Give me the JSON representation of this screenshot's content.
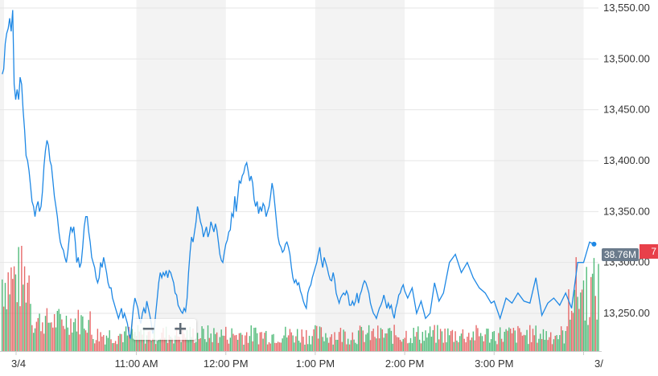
{
  "chart_data": {
    "type": "line",
    "title": "",
    "xlabel": "",
    "ylabel": "",
    "ylim": [
      13215,
      13560
    ],
    "y_ticks": [
      "13,550.00",
      "13,500.00",
      "13,450.00",
      "13,400.00",
      "13,350.00",
      "13,300.00",
      "13,250.00"
    ],
    "y_tick_values": [
      13550,
      13500,
      13450,
      13400,
      13350,
      13300,
      13250
    ],
    "x_tick_labels": [
      "3/4",
      "11:00 AM",
      "12:00 PM",
      "1:00 PM",
      "2:00 PM",
      "3:00 PM",
      "3/"
    ],
    "x_tick_minutes": [
      0,
      90,
      150,
      210,
      270,
      330,
      390
    ],
    "xlim_minutes": [
      -1.5,
      400
    ],
    "grid": true,
    "series": [
      {
        "kind": "price",
        "color": "#1e88e5",
        "points": [
          [
            0,
            13485
          ],
          [
            1,
            13490
          ],
          [
            2,
            13515
          ],
          [
            3,
            13525
          ],
          [
            4,
            13530
          ],
          [
            5,
            13540
          ],
          [
            6,
            13527
          ],
          [
            7,
            13548
          ],
          [
            8,
            13475
          ],
          [
            9,
            13460
          ],
          [
            10,
            13470
          ],
          [
            11,
            13460
          ],
          [
            12,
            13482
          ],
          [
            13,
            13475
          ],
          [
            14,
            13450
          ],
          [
            15,
            13430
          ],
          [
            16,
            13405
          ],
          [
            17,
            13400
          ],
          [
            18,
            13390
          ],
          [
            19,
            13375
          ],
          [
            20,
            13360
          ],
          [
            21,
            13355
          ],
          [
            22,
            13345
          ],
          [
            23,
            13355
          ],
          [
            24,
            13360
          ],
          [
            25,
            13350
          ],
          [
            26,
            13355
          ],
          [
            27,
            13370
          ],
          [
            28,
            13395
          ],
          [
            29,
            13410
          ],
          [
            30,
            13420
          ],
          [
            31,
            13415
          ],
          [
            32,
            13400
          ],
          [
            33,
            13395
          ],
          [
            34,
            13380
          ],
          [
            35,
            13365
          ],
          [
            36,
            13355
          ],
          [
            37,
            13345
          ],
          [
            38,
            13330
          ],
          [
            39,
            13320
          ],
          [
            40,
            13315
          ],
          [
            41,
            13312
          ],
          [
            42,
            13305
          ],
          [
            43,
            13300
          ],
          [
            44,
            13310
          ],
          [
            45,
            13325
          ],
          [
            46,
            13335
          ],
          [
            47,
            13330
          ],
          [
            48,
            13335
          ],
          [
            49,
            13320
          ],
          [
            50,
            13300
          ],
          [
            51,
            13305
          ],
          [
            52,
            13295
          ],
          [
            53,
            13300
          ],
          [
            54,
            13315
          ],
          [
            55,
            13335
          ],
          [
            56,
            13345
          ],
          [
            57,
            13345
          ],
          [
            58,
            13330
          ],
          [
            59,
            13320
          ],
          [
            60,
            13305
          ],
          [
            61,
            13300
          ],
          [
            62,
            13295
          ],
          [
            63,
            13285
          ],
          [
            64,
            13280
          ],
          [
            65,
            13285
          ],
          [
            66,
            13300
          ],
          [
            67,
            13295
          ],
          [
            68,
            13305
          ],
          [
            69,
            13298
          ],
          [
            70,
            13290
          ],
          [
            71,
            13280
          ],
          [
            72,
            13275
          ],
          [
            73,
            13275
          ],
          [
            74,
            13265
          ],
          [
            75,
            13260
          ],
          [
            76,
            13255
          ],
          [
            77,
            13250
          ],
          [
            78,
            13245
          ],
          [
            79,
            13250
          ],
          [
            80,
            13255
          ],
          [
            81,
            13245
          ],
          [
            82,
            13250
          ],
          [
            83,
            13245
          ],
          [
            84,
            13240
          ],
          [
            85,
            13230
          ],
          [
            86,
            13225
          ],
          [
            87,
            13240
          ],
          [
            88,
            13255
          ],
          [
            89,
            13265
          ],
          [
            90,
            13260
          ],
          [
            91,
            13255
          ],
          [
            92,
            13245
          ],
          [
            93,
            13240
          ],
          [
            94,
            13250
          ],
          [
            95,
            13255
          ],
          [
            96,
            13250
          ],
          [
            97,
            13262
          ],
          [
            98,
            13255
          ],
          [
            99,
            13248
          ],
          [
            100,
            13240
          ],
          [
            101,
            13230
          ],
          [
            102,
            13235
          ],
          [
            103,
            13250
          ],
          [
            104,
            13265
          ],
          [
            105,
            13280
          ],
          [
            106,
            13290
          ],
          [
            107,
            13285
          ],
          [
            108,
            13290
          ],
          [
            109,
            13287
          ],
          [
            110,
            13292
          ],
          [
            111,
            13285
          ],
          [
            112,
            13292
          ],
          [
            113,
            13290
          ],
          [
            114,
            13285
          ],
          [
            115,
            13280
          ],
          [
            116,
            13270
          ],
          [
            117,
            13268
          ],
          [
            118,
            13258
          ],
          [
            119,
            13255
          ],
          [
            120,
            13252
          ],
          [
            121,
            13250
          ],
          [
            122,
            13255
          ],
          [
            123,
            13252
          ],
          [
            124,
            13265
          ],
          [
            125,
            13290
          ],
          [
            126,
            13310
          ],
          [
            127,
            13325
          ],
          [
            128,
            13320
          ],
          [
            129,
            13330
          ],
          [
            130,
            13340
          ],
          [
            131,
            13355
          ],
          [
            132,
            13348
          ],
          [
            133,
            13340
          ],
          [
            134,
            13335
          ],
          [
            135,
            13325
          ],
          [
            136,
            13330
          ],
          [
            137,
            13335
          ],
          [
            138,
            13325
          ],
          [
            139,
            13330
          ],
          [
            140,
            13340
          ],
          [
            141,
            13335
          ],
          [
            142,
            13330
          ],
          [
            143,
            13338
          ],
          [
            144,
            13332
          ],
          [
            145,
            13320
          ],
          [
            146,
            13308
          ],
          [
            147,
            13302
          ],
          [
            148,
            13300
          ],
          [
            149,
            13310
          ],
          [
            150,
            13318
          ],
          [
            151,
            13322
          ],
          [
            152,
            13330
          ],
          [
            153,
            13332
          ],
          [
            154,
            13348
          ],
          [
            155,
            13345
          ],
          [
            156,
            13365
          ],
          [
            157,
            13350
          ],
          [
            158,
            13365
          ],
          [
            159,
            13380
          ],
          [
            160,
            13378
          ],
          [
            161,
            13385
          ],
          [
            162,
            13388
          ],
          [
            163,
            13395
          ],
          [
            164,
            13398
          ],
          [
            165,
            13390
          ],
          [
            166,
            13380
          ],
          [
            167,
            13385
          ],
          [
            168,
            13378
          ],
          [
            169,
            13362
          ],
          [
            170,
            13355
          ],
          [
            171,
            13360
          ],
          [
            172,
            13348
          ],
          [
            173,
            13355
          ],
          [
            174,
            13350
          ],
          [
            175,
            13358
          ],
          [
            176,
            13355
          ],
          [
            177,
            13345
          ],
          [
            178,
            13350
          ],
          [
            179,
            13355
          ],
          [
            180,
            13365
          ],
          [
            181,
            13378
          ],
          [
            182,
            13370
          ],
          [
            183,
            13355
          ],
          [
            184,
            13340
          ],
          [
            185,
            13325
          ],
          [
            186,
            13318
          ],
          [
            187,
            13315
          ],
          [
            188,
            13310
          ],
          [
            189,
            13312
          ],
          [
            190,
            13318
          ],
          [
            191,
            13320
          ],
          [
            192,
            13315
          ],
          [
            193,
            13308
          ],
          [
            194,
            13295
          ],
          [
            195,
            13285
          ],
          [
            196,
            13280
          ],
          [
            197,
            13283
          ],
          [
            198,
            13278
          ],
          [
            199,
            13280
          ],
          [
            200,
            13272
          ],
          [
            201,
            13268
          ],
          [
            202,
            13262
          ],
          [
            203,
            13258
          ],
          [
            204,
            13255
          ],
          [
            205,
            13270
          ],
          [
            206,
            13275
          ],
          [
            207,
            13278
          ],
          [
            208,
            13285
          ],
          [
            209,
            13290
          ],
          [
            210,
            13295
          ],
          [
            211,
            13300
          ],
          [
            212,
            13308
          ],
          [
            213,
            13315
          ],
          [
            214,
            13303
          ],
          [
            215,
            13295
          ],
          [
            216,
            13305
          ],
          [
            217,
            13300
          ],
          [
            218,
            13295
          ],
          [
            219,
            13288
          ],
          [
            220,
            13283
          ],
          [
            221,
            13282
          ],
          [
            222,
            13290
          ],
          [
            223,
            13283
          ],
          [
            224,
            13270
          ],
          [
            225,
            13265
          ],
          [
            226,
            13260
          ],
          [
            227,
            13265
          ],
          [
            228,
            13268
          ],
          [
            229,
            13270
          ],
          [
            230,
            13268
          ],
          [
            231,
            13272
          ],
          [
            232,
            13268
          ],
          [
            233,
            13258
          ],
          [
            234,
            13258
          ],
          [
            235,
            13262
          ],
          [
            236,
            13258
          ],
          [
            237,
            13262
          ],
          [
            238,
            13270
          ],
          [
            239,
            13260
          ],
          [
            240,
            13268
          ],
          [
            241,
            13272
          ],
          [
            242,
            13278
          ],
          [
            243,
            13282
          ],
          [
            244,
            13280
          ],
          [
            245,
            13275
          ],
          [
            246,
            13270
          ],
          [
            247,
            13260
          ],
          [
            248,
            13255
          ],
          [
            249,
            13250
          ],
          [
            250,
            13248
          ],
          [
            251,
            13245
          ],
          [
            252,
            13250
          ],
          [
            253,
            13255
          ],
          [
            254,
            13258
          ],
          [
            255,
            13262
          ],
          [
            256,
            13268
          ],
          [
            257,
            13262
          ],
          [
            258,
            13255
          ],
          [
            259,
            13260
          ],
          [
            260,
            13255
          ],
          [
            261,
            13258
          ],
          [
            262,
            13250
          ],
          [
            263,
            13245
          ],
          [
            264,
            13255
          ],
          [
            265,
            13260
          ],
          [
            266,
            13268
          ],
          [
            267,
            13270
          ],
          [
            268,
            13275
          ],
          [
            269,
            13278
          ],
          [
            270,
            13272
          ]
        ]
      },
      {
        "kind": "volume",
        "up_color": "#3fb46c",
        "down_color": "#e45a5a"
      }
    ],
    "last_price_label": "7",
    "volume_label": "38.76M"
  },
  "zoom": {
    "minus": "−",
    "plus": "+"
  }
}
